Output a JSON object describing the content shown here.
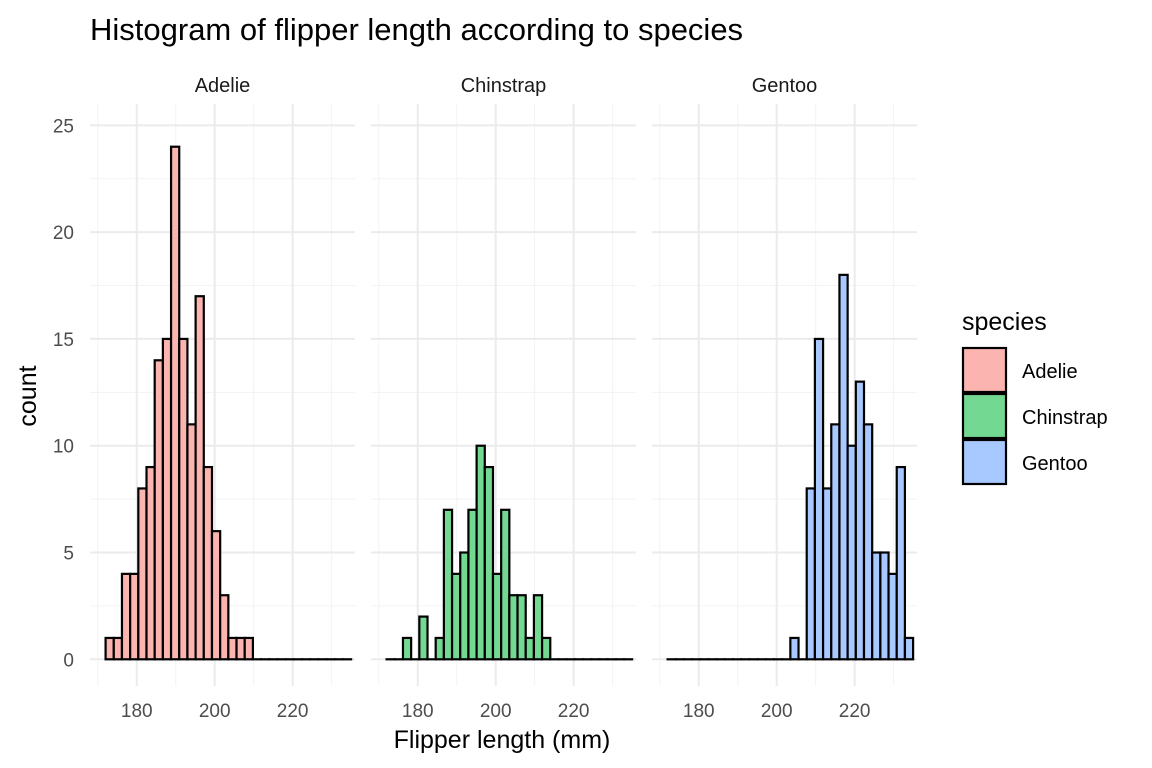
{
  "chart_data": {
    "type": "bar",
    "subtype": "faceted-histogram",
    "title": "Histogram of flipper length according to species",
    "xlabel": "Flipper length (mm)",
    "ylabel": "count",
    "xlim": [
      168,
      236
    ],
    "ylim": [
      -1.25,
      26
    ],
    "x_ticks": [
      180,
      200,
      220
    ],
    "y_ticks": [
      0,
      5,
      10,
      15,
      20,
      25
    ],
    "grid": true,
    "bin_start": 172,
    "bin_width": 2.1,
    "legend": {
      "title": "species",
      "position": "right",
      "entries": [
        "Adelie",
        "Chinstrap",
        "Gentoo"
      ]
    },
    "facets": [
      {
        "name": "Adelie",
        "color": "#F8766D",
        "values": [
          1,
          1,
          4,
          4,
          8,
          9,
          14,
          15,
          24,
          15,
          11,
          17,
          9,
          6,
          3,
          1,
          1,
          1,
          0,
          0,
          0,
          0,
          0,
          0,
          0,
          0,
          0,
          0,
          0,
          0
        ]
      },
      {
        "name": "Chinstrap",
        "color": "#00BA38",
        "values": [
          0,
          0,
          1,
          0,
          2,
          0,
          1,
          7,
          4,
          5,
          7,
          10,
          9,
          4,
          7,
          3,
          3,
          1,
          3,
          1,
          0,
          0,
          0,
          0,
          0,
          0,
          0,
          0,
          0,
          0
        ]
      },
      {
        "name": "Gentoo",
        "color": "#619CFF",
        "values": [
          0,
          0,
          0,
          0,
          0,
          0,
          0,
          0,
          0,
          0,
          0,
          0,
          0,
          0,
          0,
          1,
          0,
          8,
          15,
          8,
          11,
          18,
          10,
          13,
          11,
          5,
          5,
          4,
          9,
          1
        ]
      }
    ]
  }
}
